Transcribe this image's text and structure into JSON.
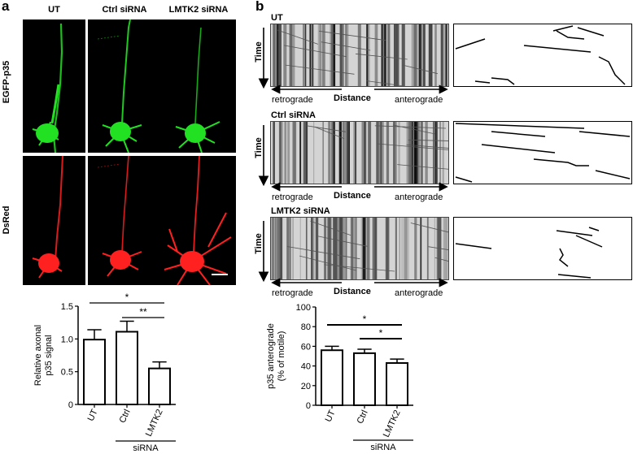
{
  "panel_a": {
    "letter": "a",
    "columns": [
      "UT",
      "Ctrl siRNA",
      "LMTK2 siRNA"
    ],
    "rows": [
      "EGFP-p35",
      "DsRed"
    ],
    "colors": {
      "egfp": "#22e022",
      "dsred": "#ff2020"
    }
  },
  "panel_b": {
    "letter": "b",
    "kymographs": [
      {
        "label": "UT"
      },
      {
        "label": "Ctrl siRNA"
      },
      {
        "label": "LMTK2 siRNA"
      }
    ],
    "axis_time": "Time",
    "axis_distance": "Distance",
    "left_end": "retrograde",
    "right_end": "anterograde"
  },
  "chart_data": [
    {
      "type": "bar",
      "categories": [
        "UT",
        "Ctrl",
        "LMTK2"
      ],
      "values": [
        0.99,
        1.11,
        0.55
      ],
      "errors": [
        0.15,
        0.16,
        0.1
      ],
      "ylabel": "Relative axonal p35 signal",
      "ylabel_lines": [
        "Relative axonal",
        "p35 signal"
      ],
      "ylim": [
        0,
        1.5
      ],
      "yticks": [
        "0",
        "0.5",
        "1.0",
        "1.5"
      ],
      "group_label": "siRNA",
      "significance": [
        {
          "pair": [
            0,
            2
          ],
          "label": "*"
        },
        {
          "pair": [
            1,
            2
          ],
          "label": "**"
        }
      ]
    },
    {
      "type": "bar",
      "categories": [
        "UT",
        "Ctrl",
        "LMTK2"
      ],
      "values": [
        56,
        53,
        43
      ],
      "errors": [
        4,
        4,
        4
      ],
      "ylabel": "p35 anterograde (% of motile)",
      "ylabel_lines": [
        "p35 anterograde",
        "(% of motile)"
      ],
      "ylim": [
        0,
        100
      ],
      "yticks": [
        "0",
        "20",
        "40",
        "60",
        "80",
        "100"
      ],
      "group_label": "siRNA",
      "significance": [
        {
          "pair": [
            0,
            2
          ],
          "label": "*"
        },
        {
          "pair": [
            1,
            2
          ],
          "label": "*"
        }
      ]
    }
  ]
}
